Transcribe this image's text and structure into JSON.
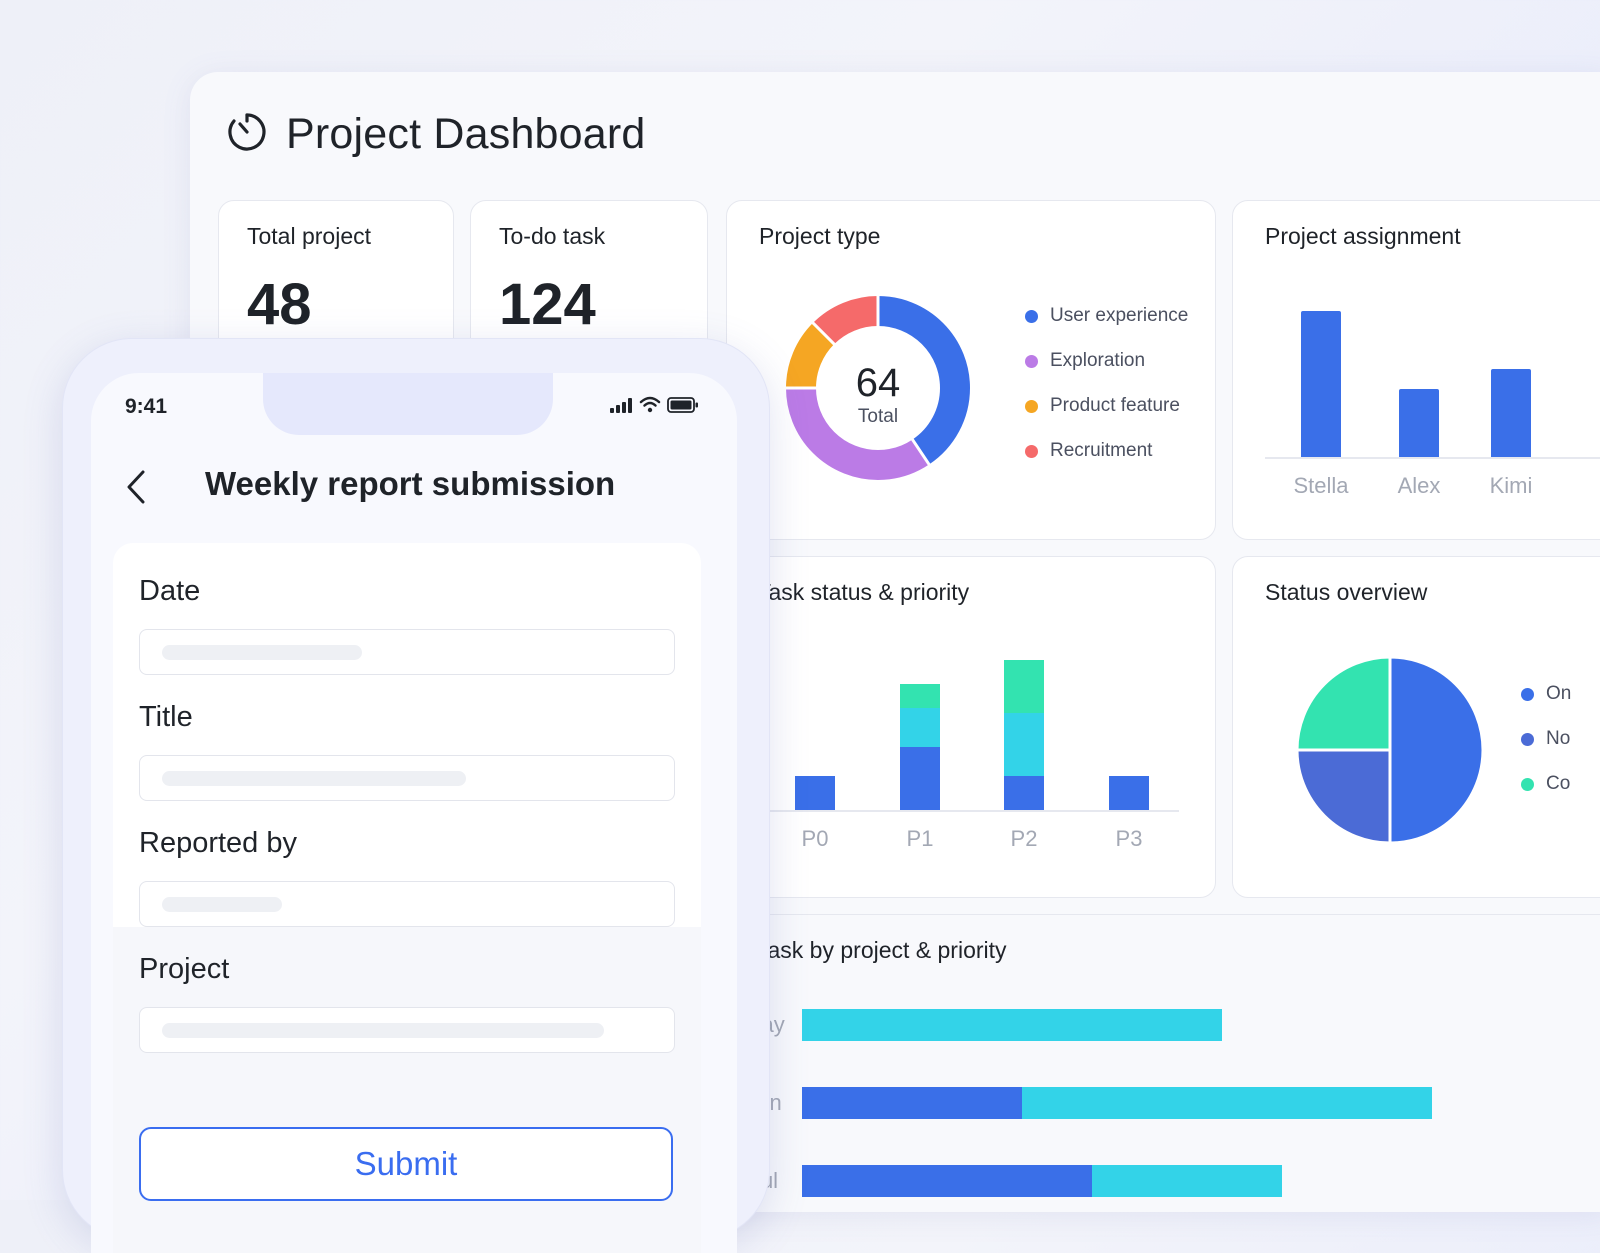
{
  "dashboard": {
    "title": "Project Dashboard",
    "icon": "timer-icon",
    "stats": [
      {
        "label": "Total project",
        "value": "48"
      },
      {
        "label": "To-do task",
        "value": "124"
      }
    ],
    "project_type": {
      "title": "Project type",
      "total_value": "64",
      "total_label": "Total",
      "legend": [
        "User experience",
        "Exploration",
        "Product feature",
        "Recruitment"
      ]
    },
    "project_assignment": {
      "title": "Project assignment"
    },
    "task_status": {
      "title": "Task status & priority"
    },
    "status_overview": {
      "title": "Status overview",
      "legend": [
        "On",
        "No",
        "Co"
      ]
    },
    "task_by_project": {
      "title": "Task by project & priority"
    }
  },
  "colors": {
    "blue": "#3a6fe8",
    "purple": "#bb7be6",
    "orange": "#f5a623",
    "red": "#f56a6a",
    "cyan": "#33d3e8",
    "green": "#33e3b0",
    "indigo": "#4b6bd6"
  },
  "chart_data": [
    {
      "type": "pie",
      "title": "Project type",
      "categories": [
        "User experience",
        "Exploration",
        "Product feature",
        "Recruitment"
      ],
      "values": [
        26,
        22,
        8,
        8
      ],
      "center_label": "64 Total"
    },
    {
      "type": "bar",
      "title": "Project assignment",
      "categories": [
        "Stella",
        "Alex",
        "Kimi"
      ],
      "values": [
        30,
        14,
        18
      ],
      "ylim": [
        0,
        30
      ]
    },
    {
      "type": "bar",
      "title": "Task status & priority",
      "stacked": true,
      "categories": [
        "P0",
        "P1",
        "P2",
        "P3"
      ],
      "series": [
        {
          "name": "Blue",
          "values": [
            7,
            13,
            7,
            7
          ]
        },
        {
          "name": "Cyan",
          "values": [
            0,
            8,
            13,
            0
          ]
        },
        {
          "name": "Green",
          "values": [
            0,
            5,
            11,
            0
          ]
        }
      ],
      "ylim": [
        0,
        31
      ]
    },
    {
      "type": "pie",
      "title": "Status overview",
      "categories": [
        "On",
        "No",
        "Co"
      ],
      "values": [
        50,
        25,
        25
      ]
    },
    {
      "type": "bar",
      "orientation": "horizontal",
      "stacked": true,
      "title": "Task by project & priority",
      "categories": [
        "May",
        "Jun",
        "Jul"
      ],
      "series": [
        {
          "name": "Blue",
          "values": [
            0,
            22,
            29
          ]
        },
        {
          "name": "Cyan",
          "values": [
            42,
            41,
            19
          ]
        }
      ],
      "xlim": [
        0,
        80
      ]
    }
  ],
  "phone": {
    "time": "9:41",
    "header": "Weekly report submission",
    "fields": [
      {
        "label": "Date"
      },
      {
        "label": "Title"
      },
      {
        "label": "Reported by"
      },
      {
        "label": "Project"
      }
    ],
    "submit_label": "Submit"
  }
}
